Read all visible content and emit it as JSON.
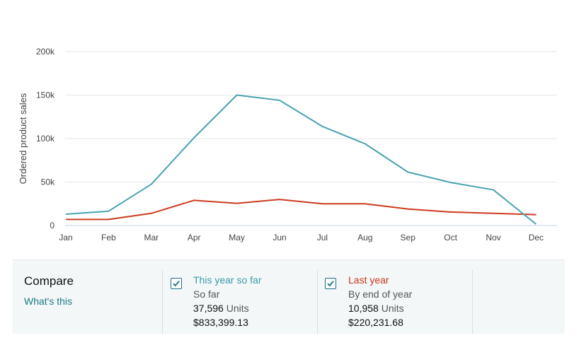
{
  "colors": {
    "this_year": "#4aa3b1",
    "last_year": "#cc3b1f",
    "grid": "#e6e6e6",
    "link": "#1b7a85"
  },
  "chart_data": {
    "type": "line",
    "categories": [
      "Jan",
      "Feb",
      "Mar",
      "Apr",
      "May",
      "Jun",
      "Jul",
      "Aug",
      "Sep",
      "Oct",
      "Nov",
      "Dec"
    ],
    "ylabel": "Ordered product sales",
    "xlabel": "",
    "ylim": [
      0,
      200000
    ],
    "yticks": [
      0,
      50000,
      100000,
      150000,
      200000
    ],
    "ytick_labels": [
      "0",
      "50k",
      "100k",
      "150k",
      "200k"
    ],
    "grid": true,
    "series": [
      {
        "name": "This year so far",
        "color": "#4aa3b1",
        "values": [
          13000,
          16500,
          47500,
          101000,
          150000,
          144000,
          114000,
          94000,
          61500,
          49500,
          41000,
          1500
        ]
      },
      {
        "name": "Last year",
        "color": "#cc3b1f",
        "values": [
          7000,
          7000,
          14000,
          29000,
          25500,
          30000,
          25000,
          25000,
          19000,
          15500,
          14000,
          12500
        ]
      }
    ]
  },
  "compare": {
    "title": "Compare",
    "whats_this": "What's this",
    "this_year": {
      "label": "This year so far",
      "sub": "So far",
      "units_value": "37,596",
      "units_label": "Units",
      "amount": "$833,399.13"
    },
    "last_year": {
      "label": "Last year",
      "sub": "By end of year",
      "units_value": "10,958",
      "units_label": "Units",
      "amount": "$220,231.68"
    }
  }
}
